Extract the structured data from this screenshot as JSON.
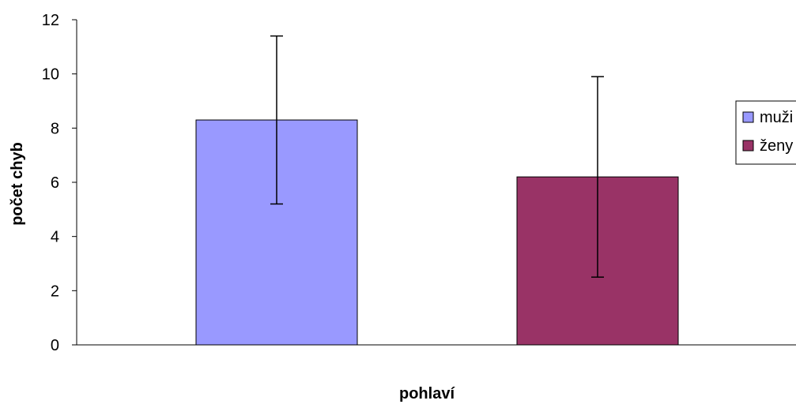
{
  "chart_data": {
    "type": "bar",
    "title": "",
    "xlabel": "pohlaví",
    "ylabel": "počet chyb",
    "ylim": [
      0,
      12
    ],
    "yticks": [
      0,
      2,
      4,
      6,
      8,
      10,
      12
    ],
    "grid": false,
    "legend_position": "right",
    "series": [
      {
        "name": "muži",
        "value": 8.3,
        "error_low": 5.2,
        "error_high": 11.4,
        "color": "#9999ff"
      },
      {
        "name": "ženy",
        "value": 6.2,
        "error_low": 2.5,
        "error_high": 9.9,
        "color": "#993366"
      }
    ]
  }
}
